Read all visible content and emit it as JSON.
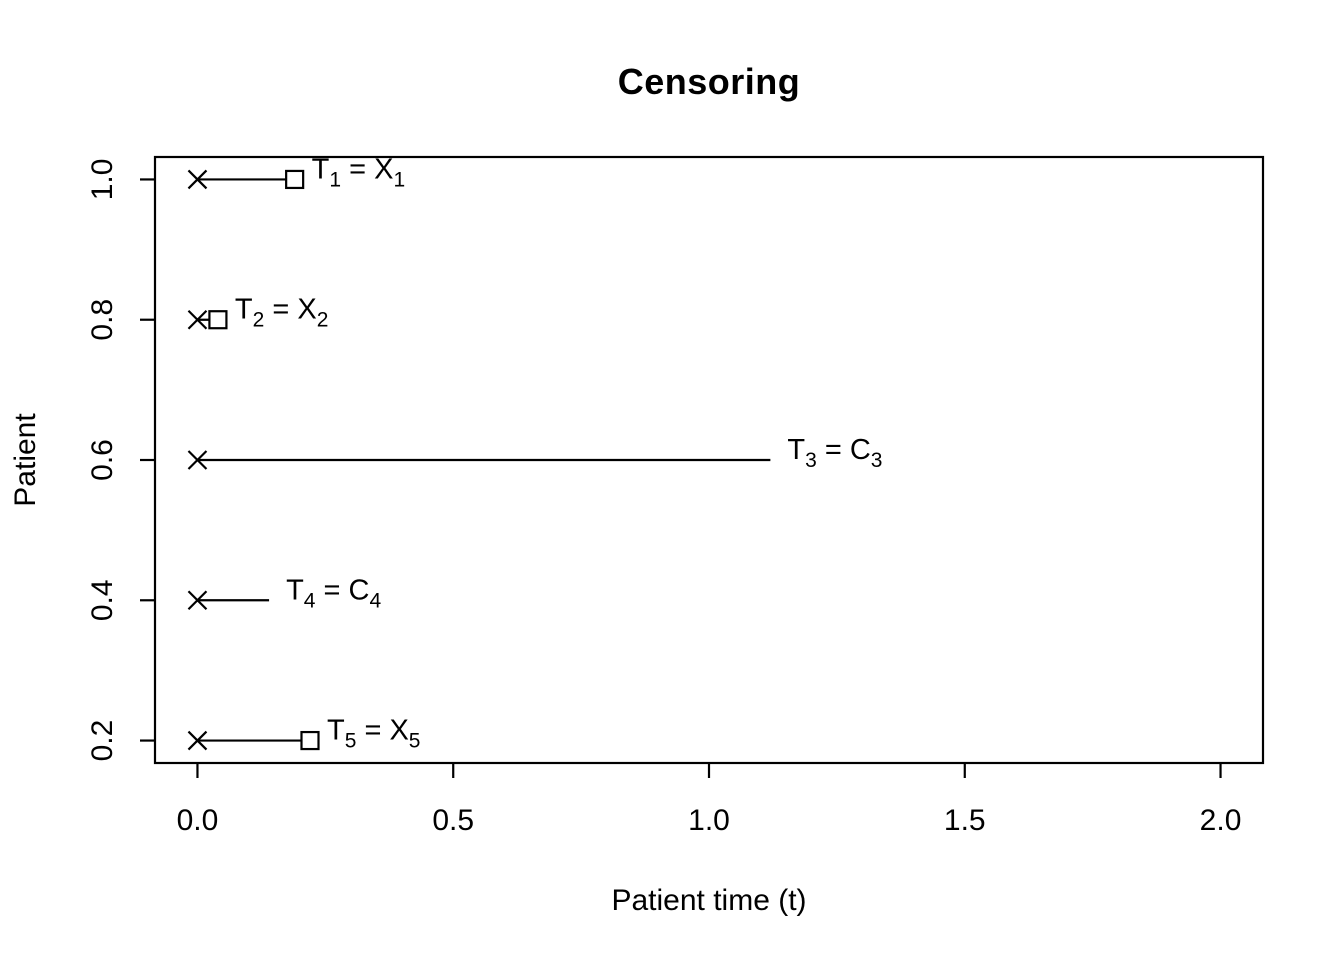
{
  "chart_data": {
    "type": "line",
    "title": "Censoring",
    "xlabel": "Patient time (t)",
    "ylabel": "Patient",
    "xlim": [
      -0.083,
      2.083
    ],
    "ylim": [
      0.168,
      1.032
    ],
    "grid": false,
    "legend": "none",
    "x_ticks": {
      "values": [
        0.0,
        0.5,
        1.0,
        1.5,
        2.0
      ],
      "labels": [
        "0.0",
        "0.5",
        "1.0",
        "1.5",
        "2.0"
      ]
    },
    "y_ticks": {
      "values": [
        0.2,
        0.4,
        0.6,
        0.8,
        1.0
      ],
      "labels": [
        "0.2",
        "0.4",
        "0.6",
        "0.8",
        "1.0"
      ]
    },
    "colors": {
      "foreground": "#000000",
      "background": "#ffffff"
    },
    "markers": {
      "start": "cross",
      "event": "open-square",
      "censored": "none"
    },
    "series": [
      {
        "name": "patient-1",
        "y": 1.0,
        "t_start": 0,
        "t_end": 0.19,
        "event_observed": true,
        "label": {
          "lhs": "T",
          "lhs_sub": "1",
          "eq": " = ",
          "rhs": "X",
          "rhs_sub": "1"
        }
      },
      {
        "name": "patient-2",
        "y": 0.8,
        "t_start": 0,
        "t_end": 0.04,
        "event_observed": true,
        "label": {
          "lhs": "T",
          "lhs_sub": "2",
          "eq": " = ",
          "rhs": "X",
          "rhs_sub": "2"
        }
      },
      {
        "name": "patient-3",
        "y": 0.6,
        "t_start": 0,
        "t_end": 1.12,
        "event_observed": false,
        "label": {
          "lhs": "T",
          "lhs_sub": "3",
          "eq": " = ",
          "rhs": "C",
          "rhs_sub": "3"
        }
      },
      {
        "name": "patient-4",
        "y": 0.4,
        "t_start": 0,
        "t_end": 0.14,
        "event_observed": false,
        "label": {
          "lhs": "T",
          "lhs_sub": "4",
          "eq": " = ",
          "rhs": "C",
          "rhs_sub": "4"
        }
      },
      {
        "name": "patient-5",
        "y": 0.2,
        "t_start": 0,
        "t_end": 0.22,
        "event_observed": true,
        "label": {
          "lhs": "T",
          "lhs_sub": "5",
          "eq": " = ",
          "rhs": "X",
          "rhs_sub": "5"
        }
      }
    ]
  }
}
